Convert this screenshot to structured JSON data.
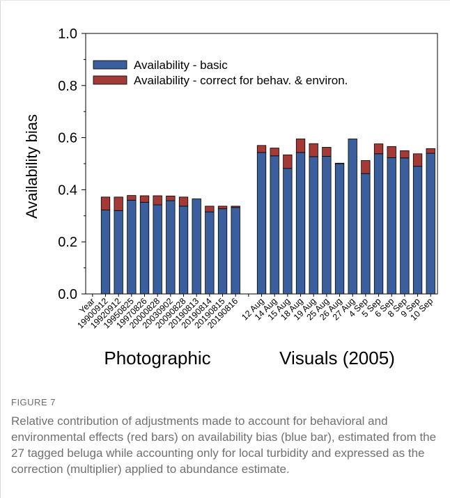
{
  "figure": {
    "label": "FIGURE 7",
    "caption": "Relative contribution of adjustments made to account for behavioral and environmental effects (red bars) on availability bias (blue bar), estimated from the 27 tagged beluga while accounting only for local turbidity and expressed as the correction (multiplier) applied to abundance estimate."
  },
  "colors": {
    "basic": "#3a5f9c",
    "correction": "#a33a36",
    "axis": "#000000"
  },
  "chart_data": {
    "type": "bar",
    "stacked": true,
    "ylabel": "Availability bias",
    "ylim": [
      0,
      1.0
    ],
    "yticks": [
      "0.0",
      "0.2",
      "0.4",
      "0.6",
      "0.8",
      "1.0"
    ],
    "grid": false,
    "legend_position": "top-left",
    "categories": [
      "Year",
      "19900912",
      "19920912",
      "19950825",
      "19970826",
      "20000828",
      "20030902",
      "20090828",
      "20190813",
      "20190814",
      "20190815",
      "20190816",
      "",
      "12 Aug",
      "14 Aug",
      "15 Aug",
      "18 Aug",
      "19 Aug",
      "25 Aug",
      "26 Aug",
      "27 Aug",
      "4 Sep",
      "5 Sep",
      "6 Sep",
      "8 Sep",
      "9 Sep",
      "10 Sep"
    ],
    "series": [
      {
        "name": "Availability - basic",
        "values": [
          null,
          0.322,
          0.32,
          0.36,
          0.352,
          0.342,
          0.358,
          0.337,
          0.365,
          0.315,
          0.327,
          0.332,
          null,
          0.543,
          0.53,
          0.482,
          0.543,
          0.527,
          0.528,
          0.5,
          0.595,
          0.462,
          0.538,
          0.523,
          0.522,
          0.49,
          0.54
        ]
      },
      {
        "name": "Availability - correct for behav. & environ.",
        "values": [
          null,
          0.05,
          0.052,
          0.018,
          0.025,
          0.035,
          0.018,
          0.035,
          0.0,
          0.022,
          0.01,
          0.005,
          null,
          0.027,
          0.03,
          0.052,
          0.052,
          0.05,
          0.035,
          0.002,
          0.0,
          0.05,
          0.038,
          0.043,
          0.028,
          0.048,
          0.018
        ]
      }
    ],
    "group_labels": [
      "Photographic",
      "Visuals (2005)"
    ]
  }
}
